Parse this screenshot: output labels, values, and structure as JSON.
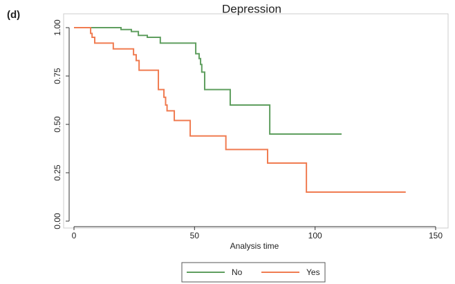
{
  "chart_data": {
    "type": "line",
    "step": true,
    "panel_label": "(d)",
    "title": "Depression",
    "x_label": "Analysis time",
    "xlim": [
      0,
      150
    ],
    "xticks": [
      0,
      50,
      100,
      150
    ],
    "ylim": [
      0,
      1
    ],
    "yticks": [
      {
        "value": 0,
        "label": "0.00"
      },
      {
        "value": 0.25,
        "label": "0.25"
      },
      {
        "value": 0.5,
        "label": "0.50"
      },
      {
        "value": 0.75,
        "label": "0.75"
      },
      {
        "value": 1,
        "label": "1.00"
      }
    ],
    "series": [
      {
        "name": "No",
        "color": "#5e9e5e",
        "x": [
          0,
          19.5,
          23.8,
          26.7,
          30.4,
          35.8,
          50.5,
          51.9,
          52.5,
          53,
          54.2,
          64.8,
          81.2,
          111
        ],
        "values": [
          1.0,
          0.99,
          0.98,
          0.96,
          0.95,
          0.92,
          0.865,
          0.84,
          0.81,
          0.77,
          0.68,
          0.6,
          0.45,
          0.45
        ]
      },
      {
        "name": "Yes",
        "color": "#f07b50",
        "x": [
          0,
          6.9,
          7.5,
          8.6,
          16.3,
          24.7,
          25.8,
          27,
          35,
          37.3,
          38,
          38.6,
          41.6,
          48.2,
          63,
          80.3,
          96.4,
          137.6
        ],
        "values": [
          1.0,
          0.97,
          0.95,
          0.92,
          0.89,
          0.86,
          0.83,
          0.78,
          0.68,
          0.64,
          0.6,
          0.57,
          0.52,
          0.44,
          0.37,
          0.3,
          0.15,
          0.15
        ]
      }
    ]
  }
}
